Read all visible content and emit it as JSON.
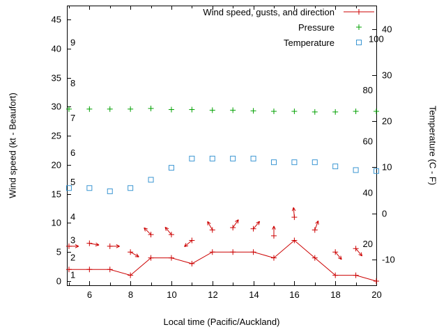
{
  "chart_data": {
    "type": "line",
    "background": "#ffffff",
    "xlabel": "Local time (Pacific/Auckland)",
    "ylabel": "Wind speed (kt - Beaufort)",
    "y2label": "Temperature (C - F)",
    "grid": false,
    "legend_position": "top-right-inside",
    "x_range": [
      4.9,
      20.0
    ],
    "y1_range": [
      -0.72,
      47.4
    ],
    "y2_range_c": [
      -15.6,
      45.1
    ],
    "x_major_ticks": [
      6,
      8,
      10,
      12,
      14,
      16,
      18,
      20
    ],
    "x_minor_ticks": [
      5,
      7,
      9,
      11,
      13,
      15,
      17,
      19
    ],
    "y1_ticks": [
      0,
      5,
      10,
      15,
      20,
      25,
      30,
      35,
      40,
      45
    ],
    "y2_ticks": [
      -10,
      0,
      10,
      20,
      30,
      40
    ],
    "beaufort_scale_labels": [
      {
        "label": "1",
        "knots": 1
      },
      {
        "label": "2",
        "knots": 4
      },
      {
        "label": "3",
        "knots": 7
      },
      {
        "label": "4",
        "knots": 11
      },
      {
        "label": "5",
        "knots": 17
      },
      {
        "label": "6",
        "knots": 22
      },
      {
        "label": "7",
        "knots": 28
      },
      {
        "label": "8",
        "knots": 34
      },
      {
        "label": "9",
        "knots": 41
      }
    ],
    "fahrenheit_scale_labels": [
      {
        "label": "20",
        "f": 20
      },
      {
        "label": "40",
        "f": 40
      },
      {
        "label": "60",
        "f": 60
      },
      {
        "label": "80",
        "f": 80
      },
      {
        "label": "100",
        "f": 100
      }
    ],
    "x": [
      5,
      6,
      7,
      8,
      9,
      10,
      11,
      12,
      13,
      14,
      15,
      16,
      17,
      18,
      19,
      20
    ],
    "series": [
      {
        "name": "Wind speed",
        "axis": "y1",
        "color": "#cc0000",
        "marker": "plus",
        "line": true,
        "values": [
          2,
          2,
          2,
          1,
          4,
          4,
          3,
          5,
          5,
          5,
          4,
          7,
          4,
          1,
          1,
          0
        ]
      },
      {
        "name": "Wind gusts and direction",
        "axis": "y1",
        "color": "#cc0000",
        "marker": "plus",
        "line": false,
        "values": [
          6,
          6.5,
          6,
          5,
          8,
          8,
          7,
          8.8,
          9.2,
          9,
          7.8,
          11,
          8.8,
          5,
          5.6,
          null
        ],
        "directions_deg": [
          90,
          100,
          90,
          120,
          315,
          320,
          230,
          330,
          35,
          40,
          0,
          355,
          20,
          140,
          140,
          null
        ]
      },
      {
        "name": "Pressure",
        "axis": "y1",
        "color": "#00a000",
        "marker": "plus",
        "line": false,
        "values": [
          29.6,
          29.6,
          29.6,
          29.6,
          29.7,
          29.5,
          29.5,
          29.4,
          29.4,
          29.3,
          29.2,
          29.2,
          29.1,
          29.1,
          29.2,
          29.2
        ]
      },
      {
        "name": "Temperature",
        "axis": "y2",
        "color": "#3b96d2",
        "marker": "square",
        "line": false,
        "values": [
          5.5,
          5.5,
          4.8,
          5.5,
          7.3,
          9.9,
          11.9,
          11.9,
          11.9,
          11.9,
          11.1,
          11.1,
          11.1,
          10.2,
          9.4,
          9.2
        ]
      }
    ],
    "legend": [
      {
        "label": "Wind speed, gusts, and direction",
        "sample": "line-plus",
        "color": "#cc0000"
      },
      {
        "label": "Pressure",
        "sample": "plus",
        "color": "#00a000"
      },
      {
        "label": "Temperature",
        "sample": "square",
        "color": "#3b96d2"
      }
    ]
  }
}
